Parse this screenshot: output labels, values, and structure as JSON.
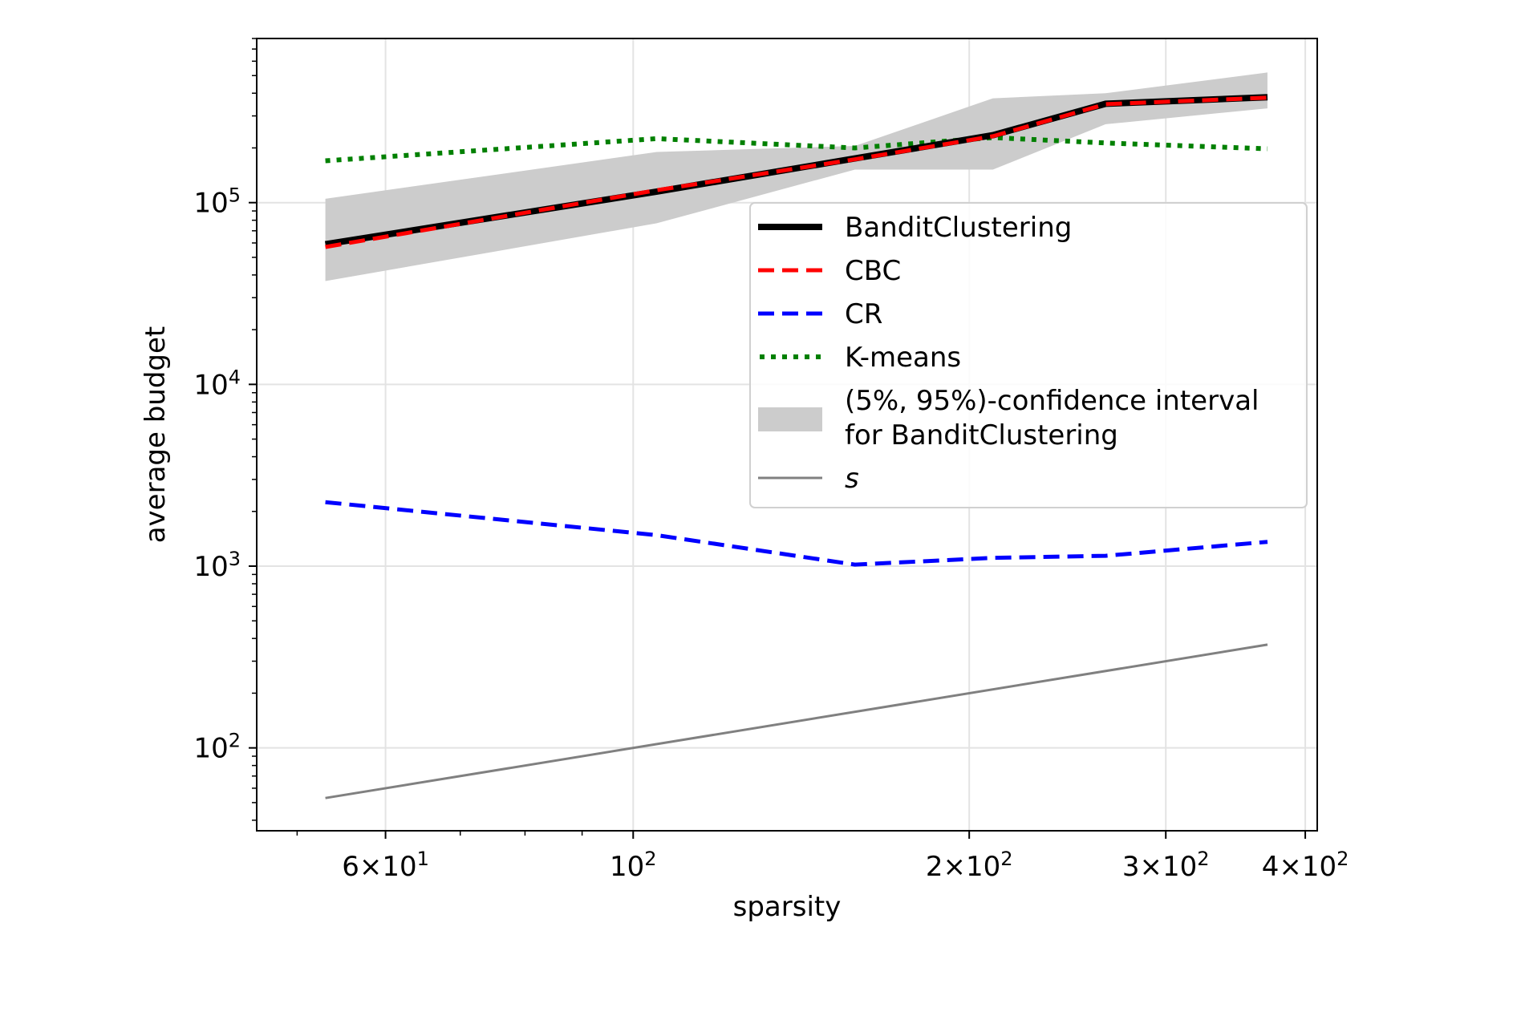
{
  "chart_data": {
    "type": "line",
    "xlabel": "sparsity",
    "ylabel": "average budget",
    "xscale": "log",
    "yscale": "log",
    "xlim": [
      46,
      410
    ],
    "ylim": [
      35,
      800000
    ],
    "grid": true,
    "legend_position": "upper-right",
    "x_ticks": [
      {
        "value": 60,
        "mantissa": "6",
        "base": "10",
        "exp": "1"
      },
      {
        "value": 100,
        "mantissa": "",
        "base": "10",
        "exp": "2"
      },
      {
        "value": 200,
        "mantissa": "2",
        "base": "10",
        "exp": "2"
      },
      {
        "value": 300,
        "mantissa": "3",
        "base": "10",
        "exp": "2"
      },
      {
        "value": 400,
        "mantissa": "4",
        "base": "10",
        "exp": "2"
      }
    ],
    "y_ticks": [
      {
        "value": 100,
        "base": "10",
        "exp": "2"
      },
      {
        "value": 1000,
        "base": "10",
        "exp": "3"
      },
      {
        "value": 10000,
        "base": "10",
        "exp": "4"
      },
      {
        "value": 100000,
        "base": "10",
        "exp": "5"
      }
    ],
    "x": [
      53,
      105,
      158,
      210,
      265,
      370
    ],
    "series": [
      {
        "name": "BanditClustering",
        "values": [
          59000,
          115000,
          175000,
          235000,
          350000,
          380000
        ],
        "color": "#000000",
        "style": "solid-thick"
      },
      {
        "name": "CBC",
        "values": [
          57000,
          117000,
          173000,
          232000,
          348000,
          378000
        ],
        "color": "#ff0000",
        "style": "dashed"
      },
      {
        "name": "CR",
        "values": [
          2250,
          1480,
          1020,
          1110,
          1140,
          1360
        ],
        "color": "#0000ff",
        "style": "dashed"
      },
      {
        "name": "K-means",
        "values": [
          170000,
          225000,
          200000,
          228000,
          213000,
          198000
        ],
        "color": "#008000",
        "style": "dotted"
      },
      {
        "name": "s",
        "x": [
          53,
          370
        ],
        "values": [
          53,
          370
        ],
        "color": "#808080",
        "style": "solid-thin"
      }
    ],
    "confidence_band": {
      "name_line1": "(5%, 95%)-confidence interval",
      "name_line2": "for BanditClustering",
      "color": "#cccccc",
      "lower": [
        37000,
        77000,
        152000,
        152000,
        270000,
        330000
      ],
      "upper": [
        105000,
        190000,
        205000,
        375000,
        400000,
        520000
      ]
    }
  }
}
